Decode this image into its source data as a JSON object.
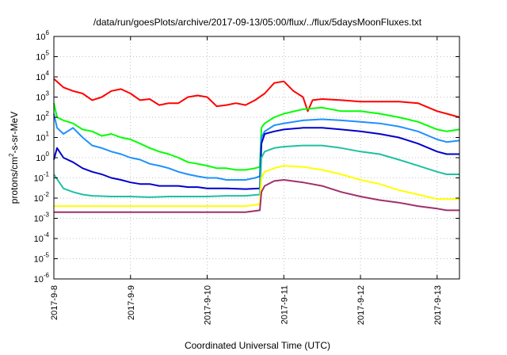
{
  "chart_data": {
    "type": "line",
    "title": "/data/run/goesPlots/archive/2017-09-13/05:00/flux/../flux/5daysMoonFluxes.txt",
    "xlabel": "Coordinated Universal Time (UTC)",
    "ylabel": "protons/cm2-s-sr-MeV",
    "ylabel_parts": {
      "pre": "protons/cm",
      "sup": "2",
      "post": "-s-sr-MeV"
    },
    "y_scale": "log",
    "ylim": [
      1e-06,
      1000000.0
    ],
    "xlim": [
      "2017-09-08T00:00",
      "2017-09-13T07:00"
    ],
    "grid": true,
    "y_ticks": [
      {
        "value": 1e-06,
        "base": "10",
        "exp": "-6"
      },
      {
        "value": 1e-05,
        "base": "10",
        "exp": "-5"
      },
      {
        "value": 0.0001,
        "base": "10",
        "exp": "-4"
      },
      {
        "value": 0.001,
        "base": "10",
        "exp": "-3"
      },
      {
        "value": 0.01,
        "base": "10",
        "exp": "-2"
      },
      {
        "value": 0.1,
        "base": "10",
        "exp": "-1"
      },
      {
        "value": 1.0,
        "base": "10",
        "exp": "0"
      },
      {
        "value": 10.0,
        "base": "10",
        "exp": "1"
      },
      {
        "value": 100.0,
        "base": "10",
        "exp": "2"
      },
      {
        "value": 1000.0,
        "base": "10",
        "exp": "3"
      },
      {
        "value": 10000.0,
        "base": "10",
        "exp": "4"
      },
      {
        "value": 100000.0,
        "base": "10",
        "exp": "5"
      },
      {
        "value": 1000000.0,
        "base": "10",
        "exp": "6"
      }
    ],
    "x_ticks": [
      {
        "date": "2017-09-08T00:00",
        "label": "2017-9-8"
      },
      {
        "date": "2017-09-09T00:00",
        "label": "2017-9-9"
      },
      {
        "date": "2017-09-10T00:00",
        "label": "2017-9-10"
      },
      {
        "date": "2017-09-11T00:00",
        "label": "2017-9-11"
      },
      {
        "date": "2017-09-12T00:00",
        "label": "2017-9-12"
      },
      {
        "date": "2017-09-13T00:00",
        "label": "2017-9-13"
      }
    ],
    "series": [
      {
        "color": "#ff0000",
        "points": [
          [
            "2017-09-08T00:00",
            8000
          ],
          [
            "2017-09-08T03:00",
            3000
          ],
          [
            "2017-09-08T06:00",
            2000
          ],
          [
            "2017-09-08T09:00",
            1500
          ],
          [
            "2017-09-08T12:00",
            700
          ],
          [
            "2017-09-08T15:00",
            1000
          ],
          [
            "2017-09-08T18:00",
            2000
          ],
          [
            "2017-09-08T21:00",
            2500
          ],
          [
            "2017-09-09T00:00",
            1500
          ],
          [
            "2017-09-09T03:00",
            700
          ],
          [
            "2017-09-09T06:00",
            800
          ],
          [
            "2017-09-09T09:00",
            400
          ],
          [
            "2017-09-09T12:00",
            500
          ],
          [
            "2017-09-09T15:00",
            500
          ],
          [
            "2017-09-09T18:00",
            1000
          ],
          [
            "2017-09-09T21:00",
            1200
          ],
          [
            "2017-09-10T00:00",
            1000
          ],
          [
            "2017-09-10T03:00",
            350
          ],
          [
            "2017-09-10T06:00",
            400
          ],
          [
            "2017-09-10T09:00",
            500
          ],
          [
            "2017-09-10T12:00",
            400
          ],
          [
            "2017-09-10T15:00",
            700
          ],
          [
            "2017-09-10T18:00",
            1500
          ],
          [
            "2017-09-10T21:00",
            5000
          ],
          [
            "2017-09-11T00:00",
            6000
          ],
          [
            "2017-09-11T03:00",
            2000
          ],
          [
            "2017-09-11T06:00",
            1000
          ],
          [
            "2017-09-11T07:30",
            200
          ],
          [
            "2017-09-11T09:00",
            700
          ],
          [
            "2017-09-11T12:00",
            800
          ],
          [
            "2017-09-11T18:00",
            700
          ],
          [
            "2017-09-12T00:00",
            600
          ],
          [
            "2017-09-12T06:00",
            600
          ],
          [
            "2017-09-12T12:00",
            600
          ],
          [
            "2017-09-12T18:00",
            500
          ],
          [
            "2017-09-13T00:00",
            200
          ],
          [
            "2017-09-13T03:00",
            150
          ],
          [
            "2017-09-13T07:00",
            100
          ]
        ]
      },
      {
        "color": "#00ff00",
        "points": [
          [
            "2017-09-08T00:00",
            500
          ],
          [
            "2017-09-08T01:00",
            100
          ],
          [
            "2017-09-08T03:00",
            70
          ],
          [
            "2017-09-08T06:00",
            50
          ],
          [
            "2017-09-08T09:00",
            25
          ],
          [
            "2017-09-08T12:00",
            20
          ],
          [
            "2017-09-08T15:00",
            12
          ],
          [
            "2017-09-08T18:00",
            15
          ],
          [
            "2017-09-08T21:00",
            10
          ],
          [
            "2017-09-09T00:00",
            8
          ],
          [
            "2017-09-09T03:00",
            5
          ],
          [
            "2017-09-09T06:00",
            3
          ],
          [
            "2017-09-09T09:00",
            2
          ],
          [
            "2017-09-09T12:00",
            1.5
          ],
          [
            "2017-09-09T15:00",
            1
          ],
          [
            "2017-09-09T18:00",
            0.6
          ],
          [
            "2017-09-09T21:00",
            0.5
          ],
          [
            "2017-09-10T00:00",
            0.4
          ],
          [
            "2017-09-10T03:00",
            0.3
          ],
          [
            "2017-09-10T06:00",
            0.3
          ],
          [
            "2017-09-10T09:00",
            0.25
          ],
          [
            "2017-09-10T12:00",
            0.25
          ],
          [
            "2017-09-10T15:00",
            0.3
          ],
          [
            "2017-09-10T16:30",
            0.35
          ],
          [
            "2017-09-10T17:00",
            30
          ],
          [
            "2017-09-10T18:00",
            50
          ],
          [
            "2017-09-10T21:00",
            100
          ],
          [
            "2017-09-11T00:00",
            150
          ],
          [
            "2017-09-11T06:00",
            250
          ],
          [
            "2017-09-11T12:00",
            300
          ],
          [
            "2017-09-11T18:00",
            200
          ],
          [
            "2017-09-12T00:00",
            200
          ],
          [
            "2017-09-12T06:00",
            150
          ],
          [
            "2017-09-12T12:00",
            100
          ],
          [
            "2017-09-12T18:00",
            60
          ],
          [
            "2017-09-13T00:00",
            25
          ],
          [
            "2017-09-13T03:00",
            20
          ],
          [
            "2017-09-13T07:00",
            25
          ]
        ]
      },
      {
        "color": "#1e90ff",
        "points": [
          [
            "2017-09-08T00:00",
            150
          ],
          [
            "2017-09-08T01:00",
            30
          ],
          [
            "2017-09-08T03:00",
            15
          ],
          [
            "2017-09-08T06:00",
            30
          ],
          [
            "2017-09-08T09:00",
            10
          ],
          [
            "2017-09-08T12:00",
            4
          ],
          [
            "2017-09-08T15:00",
            3
          ],
          [
            "2017-09-08T18:00",
            2
          ],
          [
            "2017-09-08T21:00",
            1.5
          ],
          [
            "2017-09-09T00:00",
            1
          ],
          [
            "2017-09-09T03:00",
            0.8
          ],
          [
            "2017-09-09T06:00",
            0.5
          ],
          [
            "2017-09-09T09:00",
            0.4
          ],
          [
            "2017-09-09T12:00",
            0.3
          ],
          [
            "2017-09-09T15:00",
            0.2
          ],
          [
            "2017-09-09T18:00",
            0.15
          ],
          [
            "2017-09-09T21:00",
            0.12
          ],
          [
            "2017-09-10T00:00",
            0.1
          ],
          [
            "2017-09-10T03:00",
            0.1
          ],
          [
            "2017-09-10T06:00",
            0.08
          ],
          [
            "2017-09-10T09:00",
            0.08
          ],
          [
            "2017-09-10T12:00",
            0.08
          ],
          [
            "2017-09-10T15:00",
            0.1
          ],
          [
            "2017-09-10T16:30",
            0.12
          ],
          [
            "2017-09-10T17:00",
            10
          ],
          [
            "2017-09-10T18:00",
            20
          ],
          [
            "2017-09-10T21:00",
            40
          ],
          [
            "2017-09-11T00:00",
            50
          ],
          [
            "2017-09-11T06:00",
            70
          ],
          [
            "2017-09-11T12:00",
            80
          ],
          [
            "2017-09-11T18:00",
            70
          ],
          [
            "2017-09-12T00:00",
            60
          ],
          [
            "2017-09-12T06:00",
            50
          ],
          [
            "2017-09-12T12:00",
            35
          ],
          [
            "2017-09-12T18:00",
            20
          ],
          [
            "2017-09-13T00:00",
            8
          ],
          [
            "2017-09-13T03:00",
            6
          ],
          [
            "2017-09-13T07:00",
            7
          ]
        ]
      },
      {
        "color": "#0000cd",
        "points": [
          [
            "2017-09-08T00:00",
            0.8
          ],
          [
            "2017-09-08T01:00",
            3
          ],
          [
            "2017-09-08T03:00",
            1
          ],
          [
            "2017-09-08T06:00",
            0.6
          ],
          [
            "2017-09-08T09:00",
            0.3
          ],
          [
            "2017-09-08T12:00",
            0.2
          ],
          [
            "2017-09-08T15:00",
            0.15
          ],
          [
            "2017-09-08T18:00",
            0.1
          ],
          [
            "2017-09-08T21:00",
            0.08
          ],
          [
            "2017-09-09T00:00",
            0.06
          ],
          [
            "2017-09-09T03:00",
            0.05
          ],
          [
            "2017-09-09T06:00",
            0.05
          ],
          [
            "2017-09-09T09:00",
            0.04
          ],
          [
            "2017-09-09T12:00",
            0.04
          ],
          [
            "2017-09-09T15:00",
            0.04
          ],
          [
            "2017-09-09T18:00",
            0.035
          ],
          [
            "2017-09-09T21:00",
            0.035
          ],
          [
            "2017-09-10T00:00",
            0.03
          ],
          [
            "2017-09-10T06:00",
            0.03
          ],
          [
            "2017-09-10T12:00",
            0.028
          ],
          [
            "2017-09-10T16:30",
            0.03
          ],
          [
            "2017-09-10T17:00",
            5
          ],
          [
            "2017-09-10T18:00",
            15
          ],
          [
            "2017-09-10T21:00",
            20
          ],
          [
            "2017-09-11T00:00",
            25
          ],
          [
            "2017-09-11T06:00",
            30
          ],
          [
            "2017-09-11T12:00",
            30
          ],
          [
            "2017-09-11T18:00",
            25
          ],
          [
            "2017-09-12T00:00",
            20
          ],
          [
            "2017-09-12T06:00",
            15
          ],
          [
            "2017-09-12T12:00",
            10
          ],
          [
            "2017-09-12T18:00",
            5
          ],
          [
            "2017-09-13T00:00",
            2
          ],
          [
            "2017-09-13T03:00",
            1.5
          ],
          [
            "2017-09-13T07:00",
            1.5
          ]
        ]
      },
      {
        "color": "#20c0a0",
        "points": [
          [
            "2017-09-08T00:00",
            0.15
          ],
          [
            "2017-09-08T03:00",
            0.03
          ],
          [
            "2017-09-08T06:00",
            0.02
          ],
          [
            "2017-09-08T09:00",
            0.015
          ],
          [
            "2017-09-08T12:00",
            0.013
          ],
          [
            "2017-09-08T18:00",
            0.012
          ],
          [
            "2017-09-09T00:00",
            0.012
          ],
          [
            "2017-09-09T06:00",
            0.011
          ],
          [
            "2017-09-09T12:00",
            0.012
          ],
          [
            "2017-09-09T18:00",
            0.012
          ],
          [
            "2017-09-10T00:00",
            0.012
          ],
          [
            "2017-09-10T06:00",
            0.013
          ],
          [
            "2017-09-10T12:00",
            0.013
          ],
          [
            "2017-09-10T16:30",
            0.015
          ],
          [
            "2017-09-10T17:00",
            1
          ],
          [
            "2017-09-10T18:00",
            2
          ],
          [
            "2017-09-10T21:00",
            3
          ],
          [
            "2017-09-11T00:00",
            3.5
          ],
          [
            "2017-09-11T06:00",
            4
          ],
          [
            "2017-09-11T12:00",
            4
          ],
          [
            "2017-09-11T18:00",
            3
          ],
          [
            "2017-09-12T00:00",
            2
          ],
          [
            "2017-09-12T06:00",
            1.5
          ],
          [
            "2017-09-12T12:00",
            0.8
          ],
          [
            "2017-09-12T18:00",
            0.4
          ],
          [
            "2017-09-13T00:00",
            0.2
          ],
          [
            "2017-09-13T03:00",
            0.15
          ],
          [
            "2017-09-13T07:00",
            0.15
          ]
        ]
      },
      {
        "color": "#ffff00",
        "points": [
          [
            "2017-09-08T00:00",
            0.004
          ],
          [
            "2017-09-08T12:00",
            0.004
          ],
          [
            "2017-09-09T00:00",
            0.004
          ],
          [
            "2017-09-09T12:00",
            0.004
          ],
          [
            "2017-09-10T00:00",
            0.004
          ],
          [
            "2017-09-10T12:00",
            0.004
          ],
          [
            "2017-09-10T16:30",
            0.005
          ],
          [
            "2017-09-10T17:00",
            0.1
          ],
          [
            "2017-09-10T18:00",
            0.2
          ],
          [
            "2017-09-10T21:00",
            0.3
          ],
          [
            "2017-09-11T00:00",
            0.4
          ],
          [
            "2017-09-11T06:00",
            0.35
          ],
          [
            "2017-09-11T12:00",
            0.25
          ],
          [
            "2017-09-11T18:00",
            0.15
          ],
          [
            "2017-09-12T00:00",
            0.08
          ],
          [
            "2017-09-12T06:00",
            0.05
          ],
          [
            "2017-09-12T12:00",
            0.025
          ],
          [
            "2017-09-12T18:00",
            0.015
          ],
          [
            "2017-09-13T00:00",
            0.009
          ],
          [
            "2017-09-13T07:00",
            0.009
          ]
        ]
      },
      {
        "color": "#a0306a",
        "points": [
          [
            "2017-09-08T00:00",
            0.002
          ],
          [
            "2017-09-08T12:00",
            0.002
          ],
          [
            "2017-09-09T00:00",
            0.002
          ],
          [
            "2017-09-09T12:00",
            0.002
          ],
          [
            "2017-09-10T00:00",
            0.002
          ],
          [
            "2017-09-10T12:00",
            0.002
          ],
          [
            "2017-09-10T16:30",
            0.0025
          ],
          [
            "2017-09-10T17:00",
            0.02
          ],
          [
            "2017-09-10T18:00",
            0.04
          ],
          [
            "2017-09-10T21:00",
            0.07
          ],
          [
            "2017-09-11T00:00",
            0.08
          ],
          [
            "2017-09-11T06:00",
            0.06
          ],
          [
            "2017-09-11T12:00",
            0.04
          ],
          [
            "2017-09-11T18:00",
            0.02
          ],
          [
            "2017-09-12T00:00",
            0.012
          ],
          [
            "2017-09-12T06:00",
            0.008
          ],
          [
            "2017-09-12T12:00",
            0.006
          ],
          [
            "2017-09-12T18:00",
            0.004
          ],
          [
            "2017-09-13T00:00",
            0.003
          ],
          [
            "2017-09-13T03:00",
            0.0025
          ],
          [
            "2017-09-13T07:00",
            0.0025
          ]
        ]
      }
    ]
  }
}
